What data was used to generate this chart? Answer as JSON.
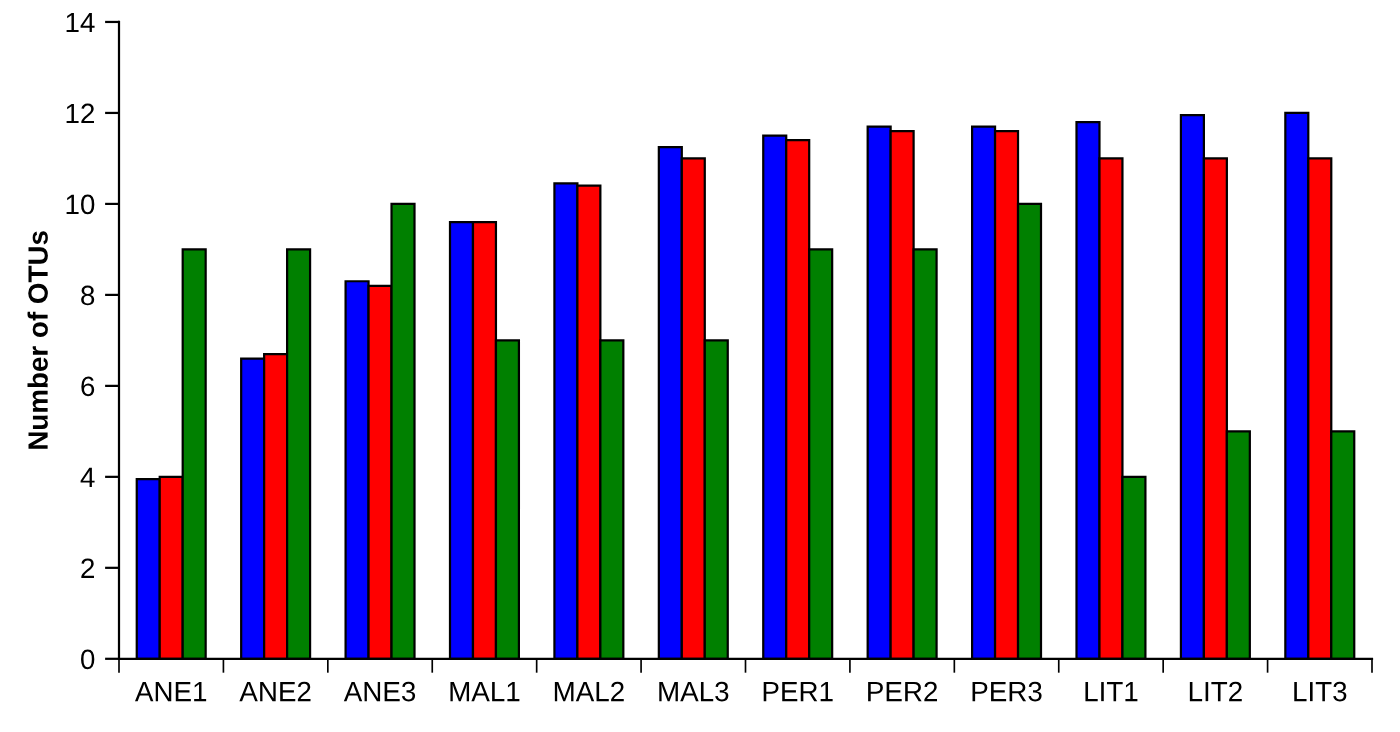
{
  "chart_data": {
    "type": "bar",
    "ylabel": "Number of OTUs",
    "categories": [
      "ANE1",
      "ANE2",
      "ANE3",
      "MAL1",
      "MAL2",
      "MAL3",
      "PER1",
      "PER2",
      "PER3",
      "LIT1",
      "LIT2",
      "LIT3"
    ],
    "series": [
      {
        "color": "#0000ff",
        "values": [
          3.95,
          6.6,
          8.3,
          9.6,
          10.45,
          11.25,
          11.5,
          11.7,
          11.7,
          11.8,
          11.95,
          12
        ]
      },
      {
        "color": "#ff0000",
        "values": [
          4,
          6.7,
          8.2,
          9.6,
          10.4,
          11,
          11.4,
          11.6,
          11.6,
          11,
          11,
          11
        ]
      },
      {
        "color": "#008000",
        "values": [
          9,
          9,
          10,
          7,
          7,
          7,
          9,
          9,
          10,
          4,
          5,
          5
        ]
      }
    ],
    "ylim": [
      0,
      14
    ],
    "yticks": [
      0,
      2,
      4,
      6,
      8,
      10,
      12,
      14
    ],
    "grid": false,
    "legend": false
  }
}
